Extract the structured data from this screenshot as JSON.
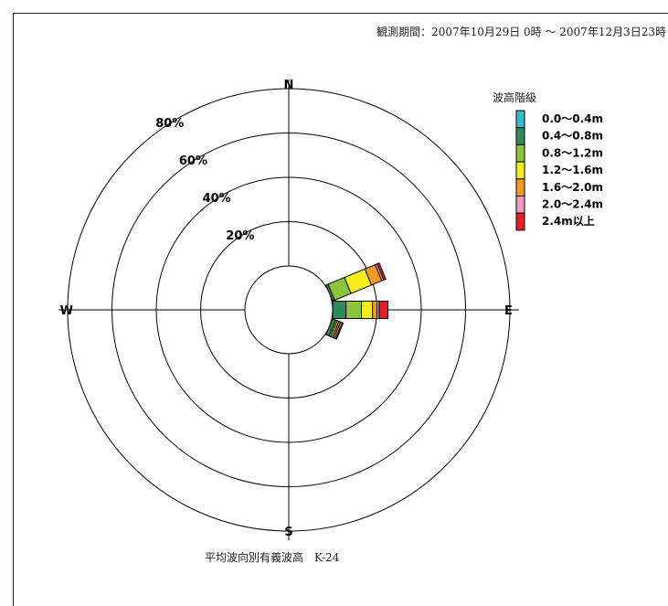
{
  "header": {
    "period": "観測期間：2007年10月29日 0時 ～ 2007年12月3日23時"
  },
  "footer": {
    "caption": "平均波向別有義波高　K-24"
  },
  "chart_data": {
    "type": "wind-rose",
    "directions": [
      "N",
      "E",
      "S",
      "W"
    ],
    "radial_labels": [
      "20%",
      "40%",
      "60%",
      "80%"
    ],
    "radial_max": 80,
    "legend_title": "波高階級",
    "legend": [
      {
        "label": "0.0～0.4m",
        "color": "#3db8c8"
      },
      {
        "label": "0.4～0.8m",
        "color": "#2e8b5a"
      },
      {
        "label": "0.8～1.2m",
        "color": "#8cc43c"
      },
      {
        "label": "1.2～1.6m",
        "color": "#f5ee1a"
      },
      {
        "label": "1.6～2.0m",
        "color": "#f39a1f"
      },
      {
        "label": "2.0～2.4m",
        "color": "#f09ac0"
      },
      {
        "label": "2.4m以上",
        "color": "#e61e25"
      }
    ],
    "series": [
      {
        "direction_deg": 67.5,
        "values": [
          0,
          1,
          8,
          10,
          5,
          1,
          1
        ]
      },
      {
        "direction_deg": 90,
        "values": [
          0,
          6,
          7,
          5,
          2,
          1,
          4
        ]
      },
      {
        "direction_deg": 112.5,
        "values": [
          0,
          1.5,
          0.8,
          0.8,
          0.8,
          0.8,
          0.5
        ]
      }
    ]
  }
}
